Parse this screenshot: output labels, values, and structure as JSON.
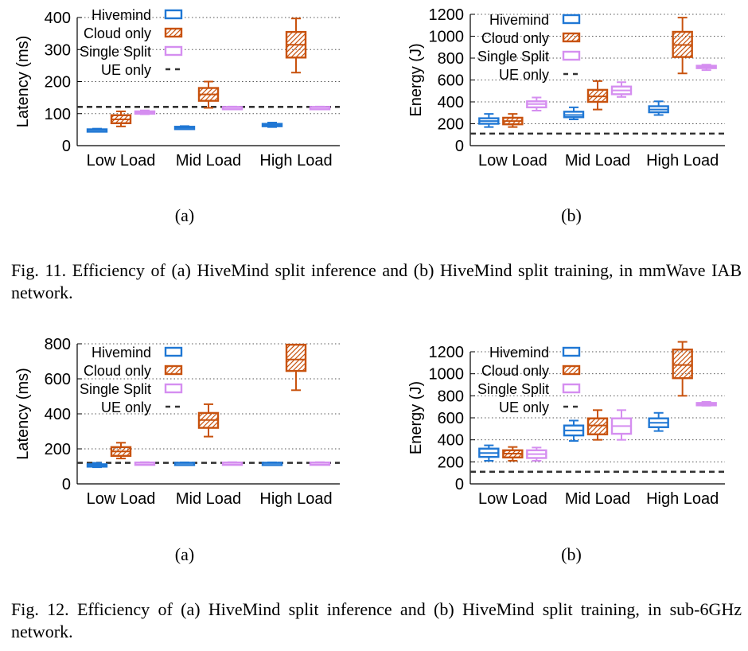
{
  "colors": {
    "hivemind": "#1f77d4",
    "cloud_only": "#c8520e",
    "single_split": "#d58ef0",
    "ue_only": "#333333"
  },
  "figures": [
    {
      "caption": "Fig. 11.   Efficiency of (a) HiveMind split inference and (b) HiveMind split training, in mmWave IAB network.",
      "sublabels": [
        "(a)",
        "(b)"
      ]
    },
    {
      "caption": "Fig. 12.   Efficiency of (a) HiveMind split inference and (b) HiveMind split training, in sub-6GHz network.",
      "sublabels": [
        "(a)",
        "(b)"
      ]
    }
  ],
  "chart_data": [
    {
      "id": "fig11a",
      "type": "box",
      "ylabel": "Latency (ms)",
      "ylim": [
        0,
        400
      ],
      "yticks": [
        0,
        100,
        200,
        300,
        400
      ],
      "grid": true,
      "legend_position": "top-left",
      "categories": [
        "Low Load",
        "Mid Load",
        "High Load"
      ],
      "series": [
        {
          "name": "Hivemind",
          "color_key": "hivemind",
          "hatch": false,
          "boxes": [
            {
              "min": 46,
              "q1": 48,
              "median": 49,
              "q3": 51,
              "max": 53
            },
            {
              "min": 53,
              "q1": 55,
              "median": 57,
              "q3": 59,
              "max": 61
            },
            {
              "min": 58,
              "q1": 61,
              "median": 64,
              "q3": 68,
              "max": 72
            }
          ]
        },
        {
          "name": "Cloud only",
          "color_key": "cloud_only",
          "hatch": true,
          "boxes": [
            {
              "min": 60,
              "q1": 70,
              "median": 82,
              "q3": 95,
              "max": 107
            },
            {
              "min": 118,
              "q1": 140,
              "median": 160,
              "q3": 180,
              "max": 200
            },
            {
              "min": 228,
              "q1": 275,
              "median": 315,
              "q3": 355,
              "max": 397
            }
          ]
        },
        {
          "name": "Single Split",
          "color_key": "single_split",
          "hatch": false,
          "boxes": [
            {
              "min": 98,
              "q1": 101,
              "median": 104,
              "q3": 107,
              "max": 110
            },
            {
              "min": 118,
              "q1": 119,
              "median": 120,
              "q3": 121,
              "max": 122
            },
            {
              "min": 118,
              "q1": 119,
              "median": 120,
              "q3": 121,
              "max": 122
            }
          ]
        }
      ],
      "reference_lines": [
        {
          "name": "UE only",
          "color_key": "ue_only",
          "y": 121
        }
      ]
    },
    {
      "id": "fig11b",
      "type": "box",
      "ylabel": "Energy (J)",
      "ylim": [
        0,
        1200
      ],
      "yticks": [
        0,
        200,
        400,
        600,
        800,
        1000,
        1200
      ],
      "grid": true,
      "legend_position": "top-left",
      "categories": [
        "Low Load",
        "Mid Load",
        "High Load"
      ],
      "series": [
        {
          "name": "Hivemind",
          "color_key": "hivemind",
          "hatch": false,
          "boxes": [
            {
              "min": 170,
              "q1": 200,
              "median": 225,
              "q3": 250,
              "max": 290
            },
            {
              "min": 240,
              "q1": 260,
              "median": 280,
              "q3": 310,
              "max": 350
            },
            {
              "min": 280,
              "q1": 305,
              "median": 330,
              "q3": 360,
              "max": 405
            }
          ]
        },
        {
          "name": "Cloud only",
          "color_key": "cloud_only",
          "hatch": true,
          "boxes": [
            {
              "min": 170,
              "q1": 195,
              "median": 225,
              "q3": 255,
              "max": 290
            },
            {
              "min": 330,
              "q1": 400,
              "median": 450,
              "q3": 510,
              "max": 590
            },
            {
              "min": 660,
              "q1": 810,
              "median": 920,
              "q3": 1040,
              "max": 1170
            }
          ]
        },
        {
          "name": "Single Split",
          "color_key": "single_split",
          "hatch": false,
          "boxes": [
            {
              "min": 320,
              "q1": 350,
              "median": 380,
              "q3": 405,
              "max": 440
            },
            {
              "min": 445,
              "q1": 470,
              "median": 505,
              "q3": 540,
              "max": 580
            },
            {
              "min": 690,
              "q1": 710,
              "median": 720,
              "q3": 730,
              "max": 740
            }
          ]
        }
      ],
      "reference_lines": [
        {
          "name": "UE only",
          "color_key": "ue_only",
          "y": 110
        }
      ]
    },
    {
      "id": "fig12a",
      "type": "box",
      "ylabel": "Latency (ms)",
      "ylim": [
        0,
        800
      ],
      "yticks": [
        0,
        200,
        400,
        600,
        800
      ],
      "grid": true,
      "legend_position": "top-left",
      "categories": [
        "Low Load",
        "Mid Load",
        "High Load"
      ],
      "series": [
        {
          "name": "Hivemind",
          "color_key": "hivemind",
          "hatch": false,
          "boxes": [
            {
              "min": 95,
              "q1": 100,
              "median": 105,
              "q3": 112,
              "max": 120
            },
            {
              "min": 115,
              "q1": 117,
              "median": 119,
              "q3": 121,
              "max": 123
            },
            {
              "min": 115,
              "q1": 117,
              "median": 119,
              "q3": 121,
              "max": 123
            }
          ]
        },
        {
          "name": "Cloud only",
          "color_key": "cloud_only",
          "hatch": true,
          "boxes": [
            {
              "min": 145,
              "q1": 160,
              "median": 185,
              "q3": 210,
              "max": 235
            },
            {
              "min": 270,
              "q1": 320,
              "median": 365,
              "q3": 405,
              "max": 455
            },
            {
              "min": 535,
              "q1": 645,
              "median": 710,
              "q3": 795,
              "max": 795
            }
          ]
        },
        {
          "name": "Single Split",
          "color_key": "single_split",
          "hatch": false,
          "boxes": [
            {
              "min": 116,
              "q1": 118,
              "median": 120,
              "q3": 122,
              "max": 124
            },
            {
              "min": 116,
              "q1": 118,
              "median": 120,
              "q3": 122,
              "max": 124
            },
            {
              "min": 116,
              "q1": 118,
              "median": 120,
              "q3": 122,
              "max": 124
            }
          ]
        }
      ],
      "reference_lines": [
        {
          "name": "UE only",
          "color_key": "ue_only",
          "y": 120
        }
      ]
    },
    {
      "id": "fig12b",
      "type": "box",
      "ylabel": "Energy (J)",
      "ylim": [
        0,
        1200
      ],
      "yticks": [
        0,
        200,
        400,
        600,
        800,
        1000,
        1200
      ],
      "grid": true,
      "legend_position": "top-left",
      "categories": [
        "Low Load",
        "Mid Load",
        "High Load"
      ],
      "series": [
        {
          "name": "Hivemind",
          "color_key": "hivemind",
          "hatch": false,
          "boxes": [
            {
              "min": 210,
              "q1": 245,
              "median": 280,
              "q3": 320,
              "max": 350
            },
            {
              "min": 390,
              "q1": 440,
              "median": 485,
              "q3": 530,
              "max": 575
            },
            {
              "min": 480,
              "q1": 515,
              "median": 555,
              "q3": 595,
              "max": 645
            }
          ]
        },
        {
          "name": "Cloud only",
          "color_key": "cloud_only",
          "hatch": true,
          "boxes": [
            {
              "min": 210,
              "q1": 240,
              "median": 275,
              "q3": 305,
              "max": 335
            },
            {
              "min": 400,
              "q1": 450,
              "median": 530,
              "q3": 595,
              "max": 670
            },
            {
              "min": 800,
              "q1": 960,
              "median": 1080,
              "q3": 1220,
              "max": 1290
            }
          ]
        },
        {
          "name": "Single Split",
          "color_key": "single_split",
          "hatch": false,
          "boxes": [
            {
              "min": 210,
              "q1": 235,
              "median": 270,
              "q3": 305,
              "max": 330
            },
            {
              "min": 400,
              "q1": 455,
              "median": 525,
              "q3": 595,
              "max": 670
            },
            {
              "min": 710,
              "q1": 715,
              "median": 725,
              "q3": 735,
              "max": 745
            }
          ]
        }
      ],
      "reference_lines": [
        {
          "name": "UE only",
          "color_key": "ue_only",
          "y": 110
        }
      ]
    }
  ]
}
